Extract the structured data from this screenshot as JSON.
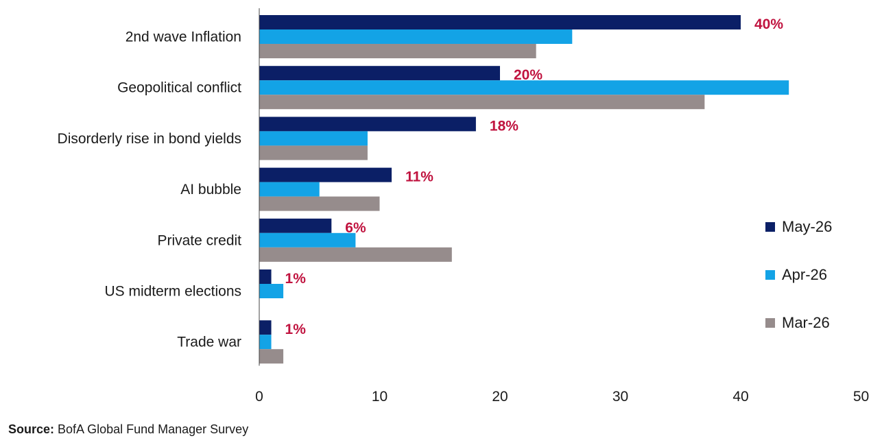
{
  "chart_data": {
    "type": "bar",
    "orientation": "horizontal",
    "categories": [
      "2nd wave Inflation",
      "Geopolitical conflict",
      "Disorderly rise in bond yields",
      "AI bubble",
      "Private credit",
      "US midterm elections",
      "Trade war"
    ],
    "series": [
      {
        "name": "May-26",
        "color": "#0b1f66",
        "values": [
          40,
          20,
          18,
          11,
          6,
          1,
          1
        ]
      },
      {
        "name": "Apr-26",
        "color": "#13a3e6",
        "values": [
          26,
          44,
          9,
          5,
          8,
          2,
          1
        ]
      },
      {
        "name": "Mar-26",
        "color": "#968c8c",
        "values": [
          23,
          37,
          9,
          10,
          16,
          0,
          2
        ]
      }
    ],
    "data_labels": [
      "40%",
      "20%",
      "18%",
      "11%",
      "6%",
      "1%",
      "1%"
    ],
    "data_label_color": "#c0133f",
    "xlim": [
      0,
      50
    ],
    "xticks": [
      "0",
      "10",
      "20",
      "30",
      "40",
      "50"
    ],
    "legend_position": "right",
    "grid": false
  },
  "source": {
    "prefix": "Source:",
    "text": " BofA Global Fund Manager Survey"
  }
}
